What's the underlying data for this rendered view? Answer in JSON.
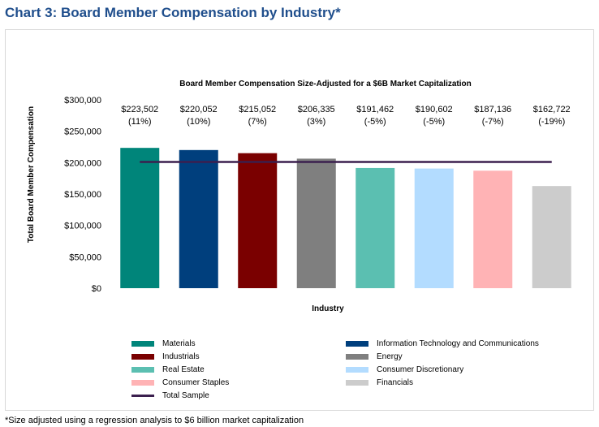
{
  "page": {
    "title": "Chart 3: Board Member Compensation by Industry*",
    "footnote": "*Size adjusted using a regression analysis to $6 billion market capitalization"
  },
  "chart_data": {
    "type": "bar",
    "title": "Board Member Compensation Size-Adjusted for a $6B Market Capitalization",
    "xlabel": "Industry",
    "ylabel": "Total Board Member Compensation",
    "ylim": [
      0,
      300000
    ],
    "yticks": [
      {
        "value": 0,
        "label": "$0"
      },
      {
        "value": 50000,
        "label": "$50,000"
      },
      {
        "value": 100000,
        "label": "$100,000"
      },
      {
        "value": 150000,
        "label": "$150,000"
      },
      {
        "value": 200000,
        "label": "$200,000"
      },
      {
        "value": 250000,
        "label": "$250,000"
      },
      {
        "value": 300000,
        "label": "$300,000"
      }
    ],
    "grid": false,
    "legend_position": "bottom",
    "categories": [
      "Materials",
      "Information Technology and Communications",
      "Industrials",
      "Energy",
      "Real Estate",
      "Consumer Discretionary",
      "Consumer Staples",
      "Financials"
    ],
    "values": [
      223502,
      220052,
      215052,
      206335,
      191462,
      190602,
      187136,
      162722
    ],
    "value_labels": [
      "$223,502",
      "$220,052",
      "$215,052",
      "$206,335",
      "$191,462",
      "$190,602",
      "$187,136",
      "$162,722"
    ],
    "pct_labels": [
      "(11%)",
      "(10%)",
      "(7%)",
      "(3%)",
      "(-5%)",
      "(-5%)",
      "(-7%)",
      "(-19%)"
    ],
    "colors": [
      "#00857a",
      "#003f7d",
      "#7a0000",
      "#7f7f7f",
      "#5bbfb1",
      "#b3dcff",
      "#ffb3b5",
      "#cccccc"
    ],
    "line_series": {
      "name": "Total Sample",
      "value": 201000,
      "color": "#3b1f4e"
    }
  }
}
